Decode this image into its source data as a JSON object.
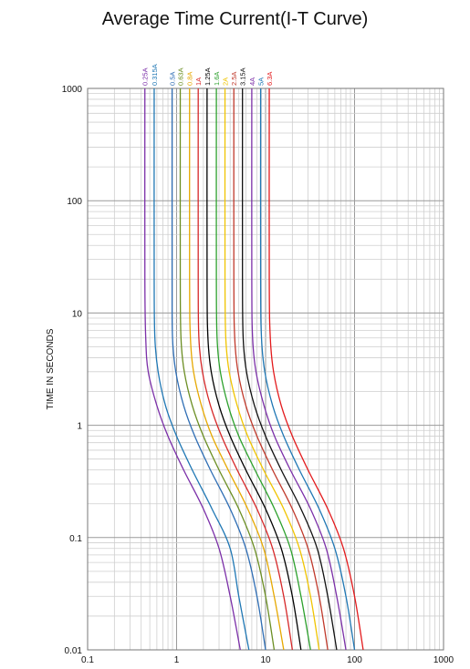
{
  "chart_data": {
    "type": "line",
    "title": "Average Time Current(I-T Curve)",
    "xlabel": "",
    "ylabel": "TIME IN SECONDS",
    "x_scale": "log",
    "y_scale": "log",
    "xlim": [
      0.1,
      1000
    ],
    "ylim": [
      0.01,
      1000
    ],
    "x_tick_labels": [
      "0.1",
      "1",
      "10",
      "100",
      "1000"
    ],
    "y_tick_labels": [
      "0.01",
      "0.1",
      "1",
      "10",
      "100",
      "1000"
    ],
    "grid": true,
    "series": [
      {
        "name": "0.25A",
        "color": "#7b2fa8",
        "points": [
          [
            0.44,
            1000
          ],
          [
            0.44,
            20
          ],
          [
            0.45,
            6
          ],
          [
            0.48,
            3
          ],
          [
            0.6,
            1.5
          ],
          [
            0.8,
            0.8
          ],
          [
            1.2,
            0.4
          ],
          [
            2,
            0.18
          ],
          [
            3,
            0.08
          ],
          [
            4,
            0.03
          ],
          [
            5.2,
            0.01
          ]
        ]
      },
      {
        "name": "0.315A",
        "color": "#1f77b4",
        "points": [
          [
            0.56,
            1000
          ],
          [
            0.56,
            20
          ],
          [
            0.57,
            6
          ],
          [
            0.62,
            3
          ],
          [
            0.75,
            1.5
          ],
          [
            1,
            0.8
          ],
          [
            1.5,
            0.4
          ],
          [
            2.5,
            0.18
          ],
          [
            4,
            0.08
          ],
          [
            5,
            0.03
          ],
          [
            6.5,
            0.01
          ]
        ]
      },
      {
        "name": "0.5A",
        "color": "#2e6db4",
        "points": [
          [
            0.89,
            1000
          ],
          [
            0.89,
            20
          ],
          [
            0.9,
            6
          ],
          [
            0.98,
            3
          ],
          [
            1.2,
            1.5
          ],
          [
            1.6,
            0.8
          ],
          [
            2.4,
            0.4
          ],
          [
            4,
            0.18
          ],
          [
            6,
            0.08
          ],
          [
            8,
            0.03
          ],
          [
            10,
            0.01
          ]
        ]
      },
      {
        "name": "0.63A",
        "color": "#6b8e23",
        "points": [
          [
            1.1,
            1000
          ],
          [
            1.1,
            20
          ],
          [
            1.12,
            6
          ],
          [
            1.22,
            3
          ],
          [
            1.5,
            1.5
          ],
          [
            2,
            0.8
          ],
          [
            3,
            0.4
          ],
          [
            5,
            0.18
          ],
          [
            7.5,
            0.08
          ],
          [
            10,
            0.03
          ],
          [
            12.5,
            0.01
          ]
        ]
      },
      {
        "name": "0.8A",
        "color": "#e6a800",
        "points": [
          [
            1.4,
            1000
          ],
          [
            1.4,
            20
          ],
          [
            1.43,
            6
          ],
          [
            1.55,
            3
          ],
          [
            1.9,
            1.5
          ],
          [
            2.5,
            0.8
          ],
          [
            3.8,
            0.4
          ],
          [
            6.3,
            0.18
          ],
          [
            9.5,
            0.08
          ],
          [
            12.5,
            0.03
          ],
          [
            16,
            0.01
          ]
        ]
      },
      {
        "name": "1A",
        "color": "#d62728",
        "points": [
          [
            1.75,
            1000
          ],
          [
            1.75,
            20
          ],
          [
            1.78,
            6
          ],
          [
            1.95,
            3
          ],
          [
            2.4,
            1.5
          ],
          [
            3.2,
            0.8
          ],
          [
            4.8,
            0.4
          ],
          [
            8,
            0.18
          ],
          [
            12,
            0.08
          ],
          [
            16,
            0.03
          ],
          [
            20,
            0.01
          ]
        ]
      },
      {
        "name": "1.25A",
        "color": "#000000",
        "points": [
          [
            2.2,
            1000
          ],
          [
            2.2,
            20
          ],
          [
            2.25,
            6
          ],
          [
            2.45,
            3
          ],
          [
            3,
            1.5
          ],
          [
            4,
            0.8
          ],
          [
            6,
            0.4
          ],
          [
            10,
            0.18
          ],
          [
            15,
            0.08
          ],
          [
            20,
            0.03
          ],
          [
            25,
            0.01
          ]
        ]
      },
      {
        "name": "1.6A",
        "color": "#2ca02c",
        "points": [
          [
            2.8,
            1000
          ],
          [
            2.8,
            20
          ],
          [
            2.85,
            6
          ],
          [
            3.1,
            3
          ],
          [
            3.8,
            1.5
          ],
          [
            5,
            0.8
          ],
          [
            7.6,
            0.4
          ],
          [
            12.6,
            0.18
          ],
          [
            19,
            0.08
          ],
          [
            25,
            0.03
          ],
          [
            32,
            0.01
          ]
        ]
      },
      {
        "name": "2A",
        "color": "#f0c400",
        "points": [
          [
            3.5,
            1000
          ],
          [
            3.5,
            20
          ],
          [
            3.57,
            6
          ],
          [
            3.9,
            3
          ],
          [
            4.8,
            1.5
          ],
          [
            6.3,
            0.8
          ],
          [
            9.5,
            0.4
          ],
          [
            16,
            0.18
          ],
          [
            24,
            0.08
          ],
          [
            32,
            0.03
          ],
          [
            40,
            0.01
          ]
        ]
      },
      {
        "name": "2.5A",
        "color": "#c0392b",
        "points": [
          [
            4.4,
            1000
          ],
          [
            4.4,
            20
          ],
          [
            4.5,
            6
          ],
          [
            4.9,
            3
          ],
          [
            6,
            1.5
          ],
          [
            8,
            0.8
          ],
          [
            12,
            0.4
          ],
          [
            20,
            0.18
          ],
          [
            30,
            0.08
          ],
          [
            40,
            0.03
          ],
          [
            50,
            0.01
          ]
        ]
      },
      {
        "name": "3.15A",
        "color": "#111111",
        "points": [
          [
            5.5,
            1000
          ],
          [
            5.5,
            20
          ],
          [
            5.6,
            6
          ],
          [
            6.1,
            3
          ],
          [
            7.5,
            1.5
          ],
          [
            10,
            0.8
          ],
          [
            15,
            0.4
          ],
          [
            25,
            0.18
          ],
          [
            38,
            0.08
          ],
          [
            50,
            0.03
          ],
          [
            63,
            0.01
          ]
        ]
      },
      {
        "name": "4A",
        "color": "#7b2fa8",
        "points": [
          [
            7,
            1000
          ],
          [
            7,
            20
          ],
          [
            7.15,
            6
          ],
          [
            7.8,
            3
          ],
          [
            9.6,
            1.5
          ],
          [
            12.6,
            0.8
          ],
          [
            19,
            0.4
          ],
          [
            32,
            0.18
          ],
          [
            48,
            0.08
          ],
          [
            63,
            0.03
          ],
          [
            80,
            0.01
          ]
        ]
      },
      {
        "name": "5A",
        "color": "#1f77b4",
        "points": [
          [
            8.8,
            1000
          ],
          [
            8.8,
            20
          ],
          [
            9,
            6
          ],
          [
            9.8,
            3
          ],
          [
            12,
            1.5
          ],
          [
            16,
            0.8
          ],
          [
            24,
            0.4
          ],
          [
            40,
            0.18
          ],
          [
            60,
            0.08
          ],
          [
            80,
            0.03
          ],
          [
            100,
            0.01
          ]
        ]
      },
      {
        "name": "6.3A",
        "color": "#e31a1c",
        "points": [
          [
            11,
            1000
          ],
          [
            11,
            20
          ],
          [
            11.3,
            6
          ],
          [
            12.3,
            3
          ],
          [
            15,
            1.5
          ],
          [
            20,
            0.8
          ],
          [
            30,
            0.4
          ],
          [
            50,
            0.18
          ],
          [
            75,
            0.08
          ],
          [
            100,
            0.03
          ],
          [
            125,
            0.01
          ]
        ]
      }
    ]
  }
}
